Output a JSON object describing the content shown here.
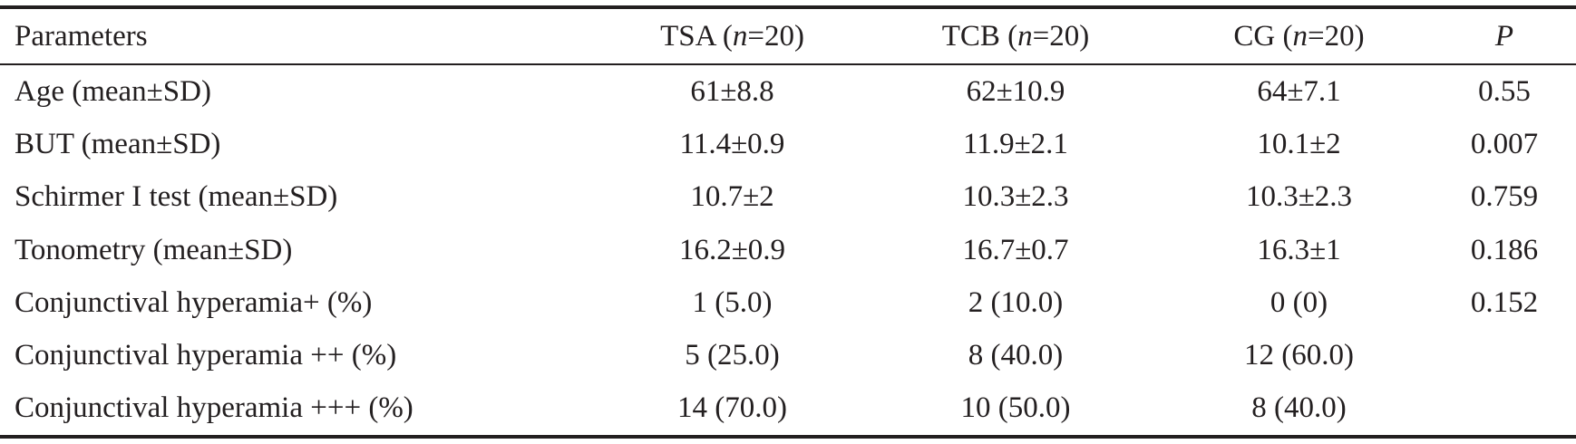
{
  "table": {
    "headers": [
      {
        "text": "Parameters"
      },
      {
        "prefix": "TSA (",
        "italic": "n",
        "suffix": "=20)"
      },
      {
        "prefix": "TCB (",
        "italic": "n",
        "suffix": "=20)"
      },
      {
        "prefix": "CG (",
        "italic": "n",
        "suffix": "=20)"
      },
      {
        "italic": "P"
      }
    ],
    "rows": [
      [
        "Age (mean±SD)",
        "61±8.8",
        "62±10.9",
        "64±7.1",
        "0.55"
      ],
      [
        "BUT (mean±SD)",
        "11.4±0.9",
        "11.9±2.1",
        "10.1±2",
        "0.007"
      ],
      [
        "Schirmer I test (mean±SD)",
        "10.7±2",
        "10.3±2.3",
        "10.3±2.3",
        "0.759"
      ],
      [
        "Tonometry (mean±SD)",
        "16.2±0.9",
        "16.7±0.7",
        "16.3±1",
        "0.186"
      ],
      [
        "Conjunctival hyperamia+ (%)",
        "1 (5.0)",
        "2 (10.0)",
        "0 (0)",
        "0.152"
      ],
      [
        "Conjunctival hyperamia ++ (%)",
        "5 (25.0)",
        "8 (40.0)",
        "12 (60.0)",
        ""
      ],
      [
        "Conjunctival hyperamia +++ (%)",
        "14 (70.0)",
        "10 (50.0)",
        "8 (40.0)",
        ""
      ]
    ]
  }
}
